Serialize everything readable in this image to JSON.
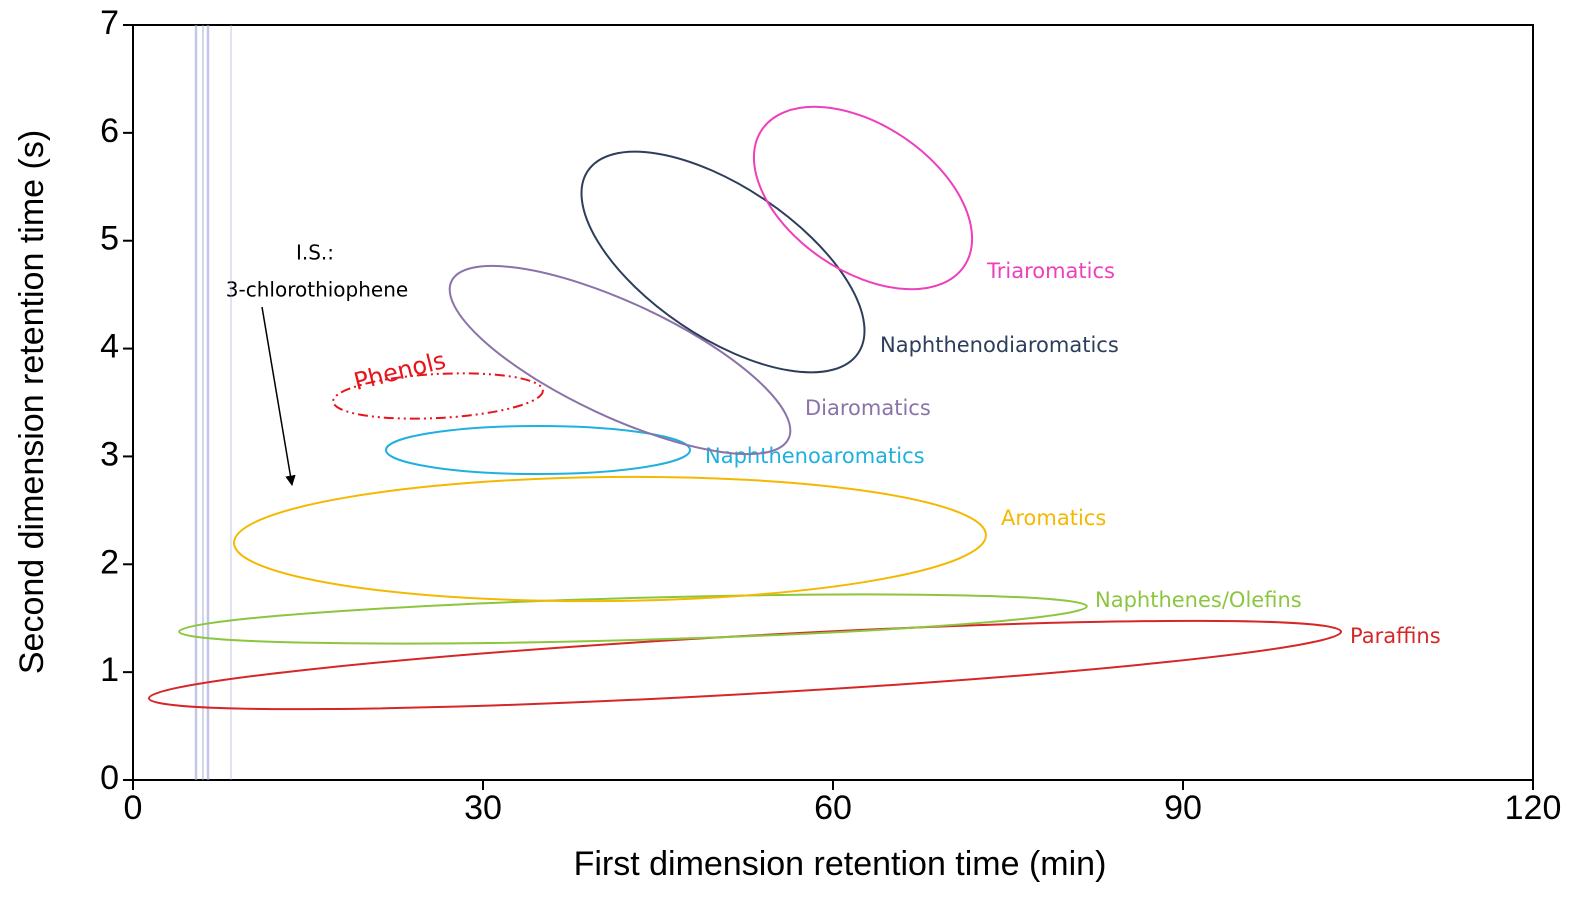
{
  "chart_data": {
    "type": "gcxgc",
    "x_label": "First dimension retention time (min)",
    "y_label": "Second dimension retention time (s)",
    "xlim": [
      0,
      120
    ],
    "xticks": [
      0,
      30,
      60,
      90,
      120
    ],
    "ylim": [
      0,
      7
    ],
    "yticks": [
      0,
      1,
      2,
      3,
      4,
      5,
      6,
      7
    ],
    "regions": [
      {
        "name": "Paraffins",
        "color": "#d62728"
      },
      {
        "name": "Naphthenes/Olefins",
        "color": "#8cc63f"
      },
      {
        "name": "Aromatics",
        "color": "#f5b800"
      },
      {
        "name": "Naphthenoaromatics",
        "color": "#1fb0e0"
      },
      {
        "name": "Phenols",
        "color": "#e8141b"
      },
      {
        "name": "Diaromatics",
        "color": "#8a73a8"
      },
      {
        "name": "Naphthenodiaromatics",
        "color": "#2d3e5c"
      },
      {
        "name": "Triaromatics",
        "color": "#ee3fbd"
      }
    ],
    "internal_standard": {
      "label": "I.S.:",
      "compound": "3-chlorothiophene"
    }
  }
}
